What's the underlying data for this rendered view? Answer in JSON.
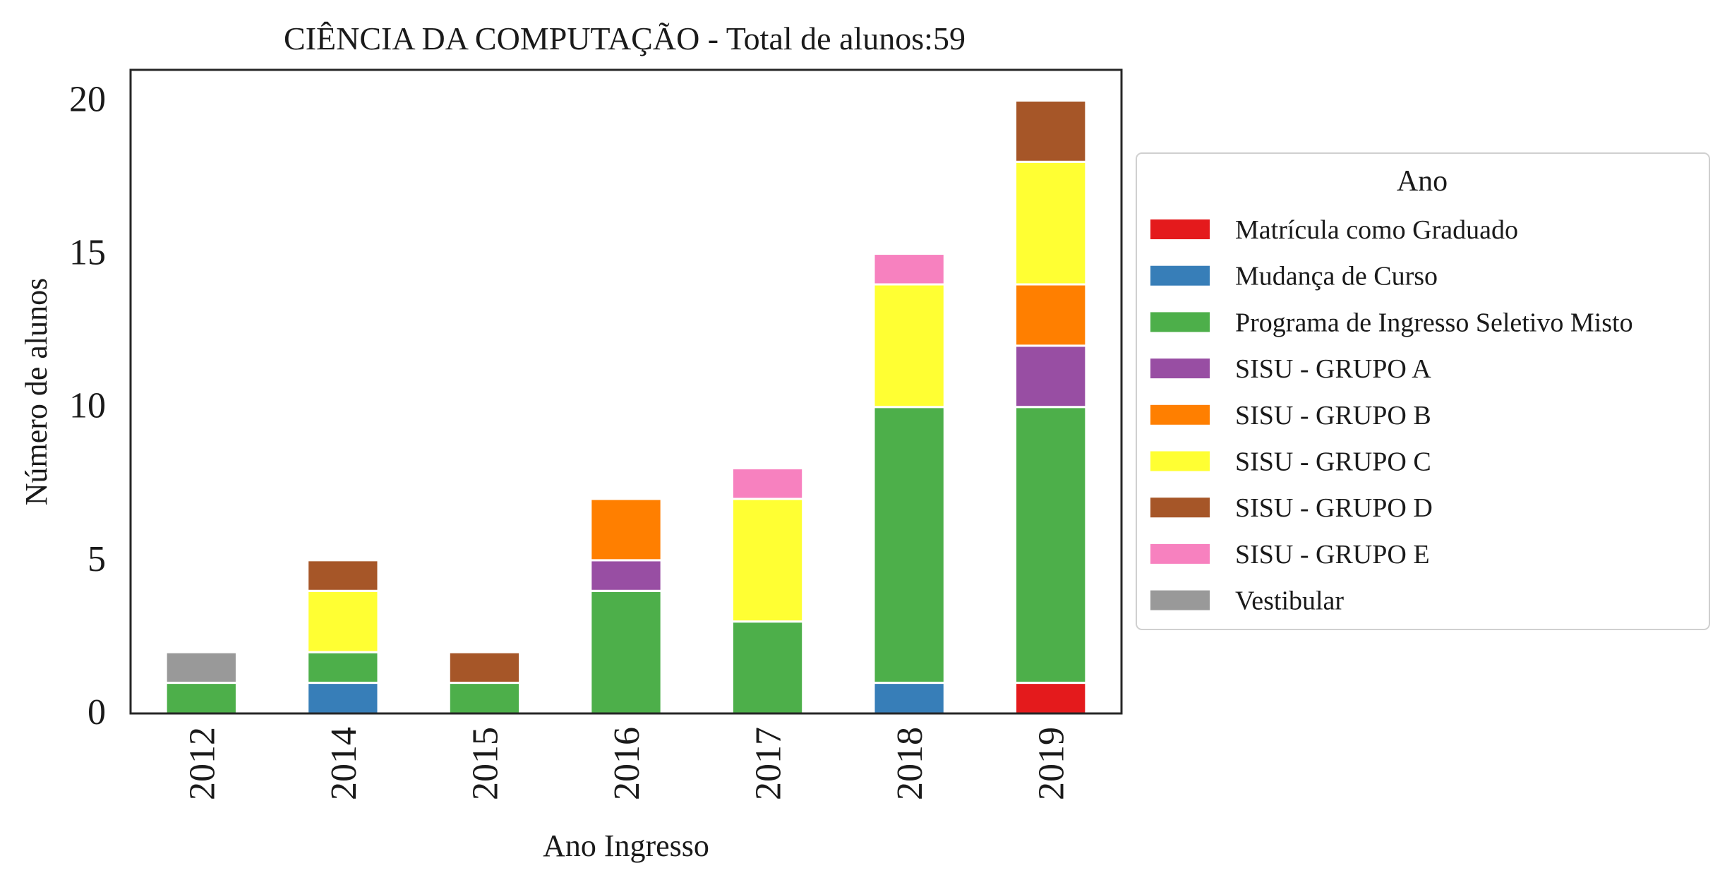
{
  "chart_data": {
    "type": "bar",
    "stacked": true,
    "title": "CIÊNCIA DA COMPUTAÇÃO - Total de alunos:59",
    "xlabel": "Ano Ingresso",
    "ylabel": "Número de alunos",
    "categories": [
      "2012",
      "2014",
      "2015",
      "2016",
      "2017",
      "2018",
      "2019"
    ],
    "ylim": [
      0,
      21
    ],
    "yticks": [
      "0",
      "5",
      "10",
      "15",
      "20"
    ],
    "grid": false,
    "legend": {
      "title": "Ano",
      "placement": "right, outside plot"
    },
    "series": [
      {
        "name": "Matrícula como Graduado",
        "color": "#e41a1c",
        "values": [
          0,
          0,
          0,
          0,
          0,
          0,
          1
        ]
      },
      {
        "name": "Mudança de Curso",
        "color": "#377eb8",
        "values": [
          0,
          1,
          0,
          0,
          0,
          1,
          0
        ]
      },
      {
        "name": "Programa de Ingresso Seletivo Misto",
        "color": "#4daf4a",
        "values": [
          1,
          1,
          1,
          4,
          3,
          9,
          9
        ]
      },
      {
        "name": "SISU - GRUPO A",
        "color": "#984ea3",
        "values": [
          0,
          0,
          0,
          1,
          0,
          0,
          2
        ]
      },
      {
        "name": "SISU - GRUPO B",
        "color": "#ff7f00",
        "values": [
          0,
          0,
          0,
          2,
          0,
          0,
          2
        ]
      },
      {
        "name": "SISU - GRUPO C",
        "color": "#ffff33",
        "values": [
          0,
          2,
          0,
          0,
          4,
          4,
          4
        ]
      },
      {
        "name": "SISU - GRUPO D",
        "color": "#a65628",
        "values": [
          0,
          1,
          1,
          0,
          0,
          0,
          2
        ]
      },
      {
        "name": "SISU - GRUPO E",
        "color": "#f781bf",
        "values": [
          0,
          0,
          0,
          0,
          1,
          1,
          0
        ]
      },
      {
        "name": "Vestibular",
        "color": "#999999",
        "values": [
          1,
          0,
          0,
          0,
          0,
          0,
          0
        ]
      }
    ]
  }
}
